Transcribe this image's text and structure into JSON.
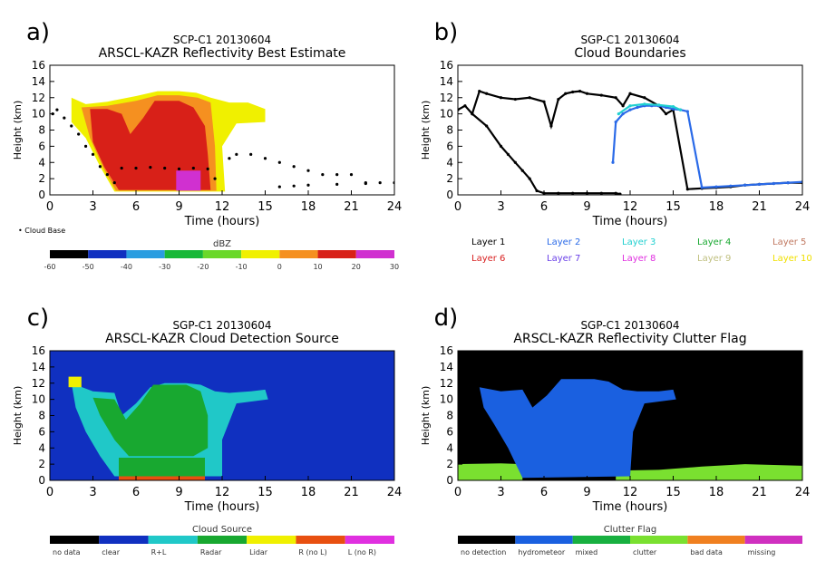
{
  "chart_data": [
    {
      "type": "heatmap",
      "panel_letter": "a)",
      "title": "SCP-C1 20130604",
      "subtitle": "ARSCL-KAZR Reflectivity Best Estimate",
      "xlabel": "Time (hours)",
      "ylabel": "Height (km)",
      "xlim": [
        0,
        24
      ],
      "ylim": [
        0,
        16
      ],
      "xticks": [
        "0",
        "3",
        "6",
        "9",
        "12",
        "15",
        "18",
        "21",
        "24"
      ],
      "yticks": [
        "0",
        "2",
        "4",
        "6",
        "8",
        "10",
        "12",
        "14",
        "16"
      ],
      "legend_note": "• Cloud Base",
      "colorbar": {
        "label": "dBZ",
        "ticks": [
          "-60",
          "-50",
          "-40",
          "-30",
          "-20",
          "-10",
          "0",
          "10",
          "20",
          "30"
        ],
        "colors": [
          "#000000",
          "#1030c0",
          "#2a9de0",
          "#18b838",
          "#6ad82a",
          "#f0f000",
          "#f59020",
          "#d82018",
          "#d030d0"
        ]
      },
      "series": [
        {
          "name": "",
          "color": "#f0f000",
          "polygon": [
            [
              1.5,
              12
            ],
            [
              2.5,
              11.2
            ],
            [
              4,
              11.5
            ],
            [
              6,
              12.2
            ],
            [
              7.5,
              12.8
            ],
            [
              9,
              12.8
            ],
            [
              10.2,
              12.6
            ],
            [
              11.2,
              12
            ],
            [
              12.5,
              11.4
            ],
            [
              13.8,
              11.4
            ],
            [
              15,
              10.6
            ],
            [
              15,
              9
            ],
            [
              13,
              8.8
            ],
            [
              12,
              6
            ],
            [
              12.2,
              0.4
            ],
            [
              4.5,
              0.4
            ],
            [
              3.5,
              3.5
            ],
            [
              2.5,
              7
            ],
            [
              1.5,
              9
            ]
          ]
        },
        {
          "name": "",
          "color": "#f59020",
          "polygon": [
            [
              2.2,
              10.8
            ],
            [
              4,
              11
            ],
            [
              6,
              11.6
            ],
            [
              7.5,
              12.3
            ],
            [
              9,
              12.3
            ],
            [
              10.3,
              12
            ],
            [
              11.2,
              11.4
            ],
            [
              11.5,
              6
            ],
            [
              11.6,
              0.5
            ],
            [
              4.6,
              0.5
            ],
            [
              3.7,
              3.4
            ],
            [
              2.8,
              7
            ]
          ]
        },
        {
          "name": "",
          "color": "#d82018",
          "polygon": [
            [
              2.8,
              10.6
            ],
            [
              4,
              10.6
            ],
            [
              5,
              10
            ],
            [
              5.6,
              7.5
            ],
            [
              6.5,
              9.5
            ],
            [
              7.3,
              11.6
            ],
            [
              9,
              11.6
            ],
            [
              10,
              10.8
            ],
            [
              10.8,
              8.5
            ],
            [
              11,
              5
            ],
            [
              11.2,
              0.6
            ],
            [
              4.8,
              0.6
            ],
            [
              3.8,
              3.4
            ],
            [
              3,
              6.5
            ]
          ]
        },
        {
          "name": "",
          "color": "#d030d0",
          "polygon": [
            [
              8.8,
              3
            ],
            [
              10.5,
              3
            ],
            [
              10.5,
              0.5
            ],
            [
              8.8,
              0.5
            ]
          ]
        }
      ]
    },
    {
      "type": "line",
      "panel_letter": "b)",
      "title": "SGP-C1 20130604",
      "subtitle": "Cloud Boundaries",
      "xlabel": "Time (hours)",
      "ylabel": "Height (km)",
      "xlim": [
        0,
        24
      ],
      "ylim": [
        0,
        16
      ],
      "xticks": [
        "0",
        "3",
        "6",
        "9",
        "12",
        "15",
        "18",
        "21",
        "24"
      ],
      "yticks": [
        "0",
        "2",
        "4",
        "6",
        "8",
        "10",
        "12",
        "14",
        "16"
      ],
      "legend": [
        {
          "label": "Layer 1",
          "color": "#000000"
        },
        {
          "label": "Layer 2",
          "color": "#2a6ae8"
        },
        {
          "label": "Layer 3",
          "color": "#20d0d0"
        },
        {
          "label": "Layer 4",
          "color": "#18a830"
        },
        {
          "label": "Layer 5",
          "color": "#c07860"
        },
        {
          "label": "Layer 6",
          "color": "#d82020"
        },
        {
          "label": "Layer 7",
          "color": "#6a40e8"
        },
        {
          "label": "Layer 8",
          "color": "#e030e0"
        },
        {
          "label": "Layer 9",
          "color": "#c0c080"
        },
        {
          "label": "Layer 10",
          "color": "#f0e000"
        }
      ],
      "series": [
        {
          "name": "Layer 1",
          "x": [
            0,
            0.5,
            1,
            1.5,
            2,
            3,
            4,
            5,
            6,
            6.5,
            7,
            7.5,
            8,
            8.5,
            9,
            10,
            11,
            11.5,
            12,
            13,
            14,
            14.5,
            15,
            16,
            17,
            18,
            19,
            20,
            21,
            22,
            23,
            24
          ],
          "y": [
            10.5,
            11,
            10,
            12.8,
            12.5,
            12,
            11.8,
            12,
            11.5,
            8.5,
            11.8,
            12.5,
            12.7,
            12.8,
            12.5,
            12.3,
            12,
            11,
            12.5,
            12,
            11,
            10,
            10.5,
            0.7,
            0.8,
            0.9,
            1,
            1.2,
            1.3,
            1.4,
            1.5,
            1.5
          ]
        },
        {
          "name": "Layer 1",
          "x": [
            1,
            2,
            3,
            3.5,
            4,
            4.5,
            5,
            5.5,
            6,
            7,
            8,
            9,
            10,
            11,
            11.3
          ],
          "y": [
            10,
            8.5,
            6,
            5,
            4,
            3,
            2,
            0.5,
            0.2,
            0.2,
            0.2,
            0.2,
            0.2,
            0.2,
            0.1
          ]
        },
        {
          "name": "Layer 2",
          "x": [
            10.8,
            11,
            11.5,
            12,
            12.5,
            13,
            13.5,
            14,
            14.5,
            15,
            15.5,
            16,
            17,
            18,
            19,
            20,
            21,
            22,
            23,
            24
          ],
          "y": [
            4,
            9,
            10,
            10.5,
            10.8,
            11,
            11,
            11,
            10.8,
            10.6,
            10.5,
            10.3,
            0.9,
            1,
            1.1,
            1.2,
            1.3,
            1.4,
            1.5,
            1.6
          ]
        },
        {
          "name": "Layer 3",
          "x": [
            11.2,
            12,
            13,
            14,
            15,
            15.5
          ],
          "y": [
            10,
            11,
            11.2,
            11.1,
            10.9,
            10.5
          ]
        }
      ]
    },
    {
      "type": "heatmap",
      "panel_letter": "c)",
      "title": "SGP-C1 20130604",
      "subtitle": "ARSCL-KAZR Cloud Detection Source",
      "xlabel": "Time (hours)",
      "ylabel": "Height (km)",
      "xlim": [
        0,
        24
      ],
      "ylim": [
        0,
        16
      ],
      "xticks": [
        "0",
        "3",
        "6",
        "9",
        "12",
        "15",
        "18",
        "21",
        "24"
      ],
      "yticks": [
        "0",
        "2",
        "4",
        "6",
        "8",
        "10",
        "12",
        "14",
        "16"
      ],
      "colorbar": {
        "label": "Cloud Source",
        "categories": [
          "no data",
          "clear",
          "R+L",
          "Radar",
          "Lidar",
          "R (no L)",
          "L (no R)"
        ],
        "colors": [
          "#000000",
          "#1030c0",
          "#20c8c8",
          "#18a830",
          "#f0f000",
          "#e85010",
          "#e030e0"
        ]
      },
      "series": [
        {
          "name": "",
          "color": "#20c8c8",
          "polygon": [
            [
              1.5,
              12
            ],
            [
              3,
              11
            ],
            [
              4.5,
              10.8
            ],
            [
              5,
              8
            ],
            [
              6,
              9.5
            ],
            [
              7,
              11.5
            ],
            [
              8,
              12
            ],
            [
              9.5,
              12
            ],
            [
              10.5,
              11.8
            ],
            [
              11.5,
              11
            ],
            [
              12.5,
              10.8
            ],
            [
              14,
              11
            ],
            [
              15,
              11.2
            ],
            [
              15.2,
              10
            ],
            [
              13,
              9.5
            ],
            [
              12,
              5
            ],
            [
              12,
              0.5
            ],
            [
              4.5,
              0.5
            ],
            [
              3.5,
              3
            ],
            [
              2.5,
              6
            ],
            [
              1.8,
              9
            ]
          ]
        },
        {
          "name": "",
          "color": "#18a830",
          "polygon": [
            [
              3,
              10.2
            ],
            [
              4.5,
              10
            ],
            [
              5.3,
              7.5
            ],
            [
              6.3,
              9.5
            ],
            [
              7.2,
              11.8
            ],
            [
              9.5,
              11.8
            ],
            [
              10.5,
              11
            ],
            [
              11,
              8
            ],
            [
              11,
              4
            ],
            [
              10,
              3
            ],
            [
              5.5,
              3
            ],
            [
              4.5,
              5
            ],
            [
              3.5,
              8
            ]
          ]
        },
        {
          "name": "",
          "color": "#18a830",
          "polygon": [
            [
              4.8,
              2.8
            ],
            [
              10.8,
              2.8
            ],
            [
              10.8,
              0.5
            ],
            [
              4.8,
              0.5
            ]
          ]
        },
        {
          "name": "",
          "color": "#f0f000",
          "polygon": [
            [
              1.3,
              12.8
            ],
            [
              2.2,
              12.8
            ],
            [
              2.2,
              11.5
            ],
            [
              1.3,
              11.5
            ]
          ]
        },
        {
          "name": "",
          "color": "#e85010",
          "polygon": [
            [
              4.8,
              0.5
            ],
            [
              10.8,
              0.5
            ],
            [
              10.8,
              0
            ],
            [
              4.8,
              0
            ]
          ]
        }
      ]
    },
    {
      "type": "heatmap",
      "panel_letter": "d)",
      "title": "SGP-C1 20130604",
      "subtitle": "ARSCL-KAZR Reflectivity Clutter Flag",
      "xlabel": "Time (hours)",
      "ylabel": "Height (km)",
      "xlim": [
        0,
        24
      ],
      "ylim": [
        0,
        16
      ],
      "xticks": [
        "0",
        "3",
        "6",
        "9",
        "12",
        "15",
        "18",
        "21",
        "24"
      ],
      "yticks": [
        "0",
        "2",
        "4",
        "6",
        "8",
        "10",
        "12",
        "14",
        "16"
      ],
      "colorbar": {
        "label": "Clutter Flag",
        "categories": [
          "no detection",
          "hydrometeor",
          "mixed",
          "clutter",
          "bad data",
          "missing"
        ],
        "colors": [
          "#000000",
          "#1a60e0",
          "#18b040",
          "#7ae030",
          "#f08020",
          "#d030c0"
        ]
      },
      "series": [
        {
          "name": "",
          "color": "#7ae030",
          "polygon": [
            [
              0,
              2
            ],
            [
              3,
              2.1
            ],
            [
              4.5,
              2
            ],
            [
              4.5,
              0
            ],
            [
              0,
              0
            ]
          ]
        },
        {
          "name": "",
          "color": "#7ae030",
          "polygon": [
            [
              11,
              1.2
            ],
            [
              14,
              1.3
            ],
            [
              17,
              1.7
            ],
            [
              20,
              2
            ],
            [
              24,
              1.8
            ],
            [
              24,
              0
            ],
            [
              11,
              0
            ]
          ]
        },
        {
          "name": "",
          "color": "#1a60e0",
          "polygon": [
            [
              1.5,
              11.5
            ],
            [
              3,
              11
            ],
            [
              4.5,
              11.2
            ],
            [
              5.2,
              9
            ],
            [
              6.2,
              10.5
            ],
            [
              7.2,
              12.5
            ],
            [
              9.5,
              12.5
            ],
            [
              10.5,
              12.2
            ],
            [
              11.5,
              11.2
            ],
            [
              12.5,
              11
            ],
            [
              14,
              11
            ],
            [
              15,
              11.2
            ],
            [
              15.2,
              10
            ],
            [
              13,
              9.5
            ],
            [
              12.2,
              6
            ],
            [
              12,
              0.5
            ],
            [
              4.5,
              0.3
            ],
            [
              3.5,
              4
            ],
            [
              2.5,
              7
            ],
            [
              1.8,
              9
            ]
          ]
        }
      ]
    }
  ]
}
